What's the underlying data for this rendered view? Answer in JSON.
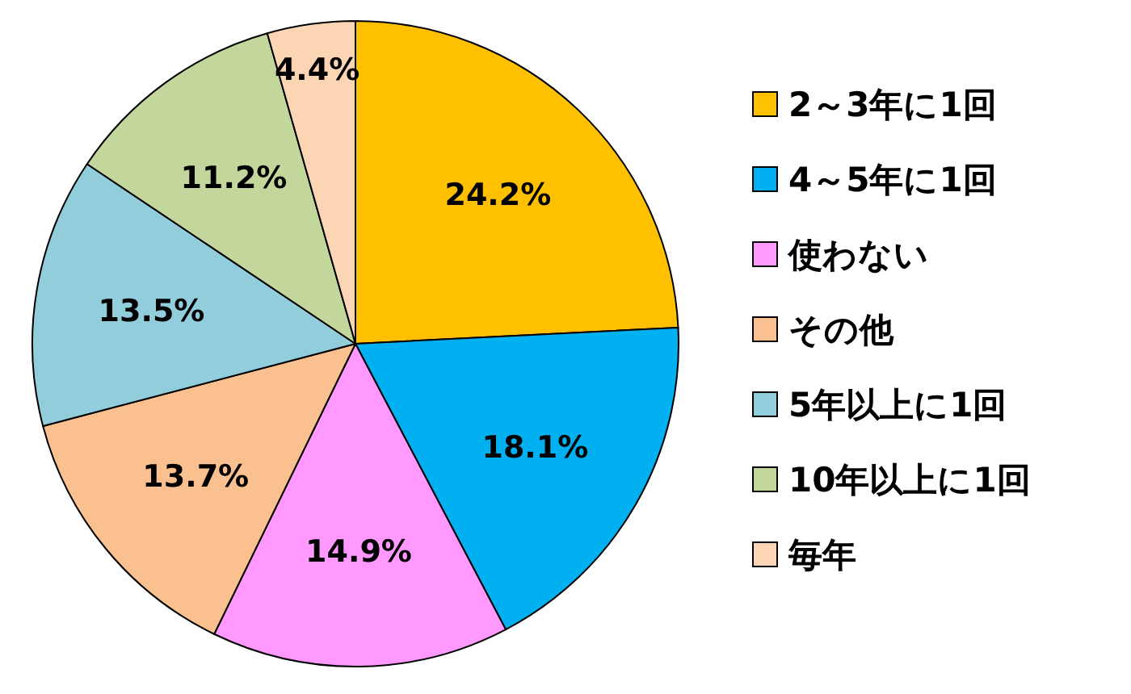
{
  "chart_data": {
    "type": "pie",
    "categories": [
      "2～3年に1回",
      "4～5年に1回",
      "使わない",
      "その他",
      "5年以上に1回",
      "10年以上に1回",
      "毎年"
    ],
    "values": [
      24.2,
      18.1,
      14.9,
      13.7,
      13.5,
      11.2,
      4.4
    ],
    "colors": [
      "#ffc000",
      "#00b0f0",
      "#ff99ff",
      "#fac090",
      "#92cddc",
      "#c3d69b",
      "#fcd5b5"
    ],
    "value_labels": [
      "24.2%",
      "18.1%",
      "14.9%",
      "13.7%",
      "13.5%",
      "11.2%",
      "4.4%"
    ],
    "legend": "right"
  }
}
